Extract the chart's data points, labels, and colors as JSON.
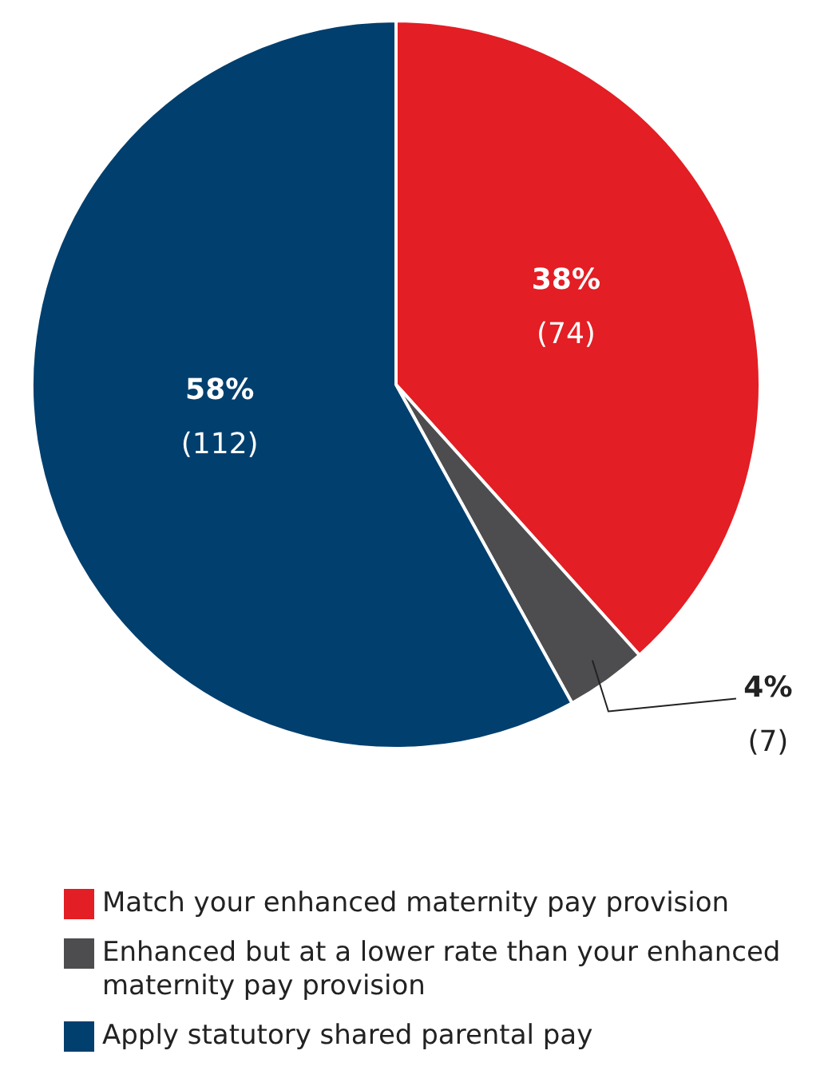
{
  "chart_data": {
    "type": "pie",
    "categories": [
      "Match your enhanced maternity pay provision",
      "Enhanced but at a lower rate than your enhanced maternity pay provision",
      "Apply statutory shared parental pay"
    ],
    "values": [
      74,
      7,
      112
    ],
    "colors": [
      "#e31e24",
      "#4d4d4f",
      "#003f6e"
    ],
    "value_labels": [
      "38%\n(74)",
      "4%\n(7)",
      "58%\n(112)"
    ],
    "legend": "bottom"
  }
}
